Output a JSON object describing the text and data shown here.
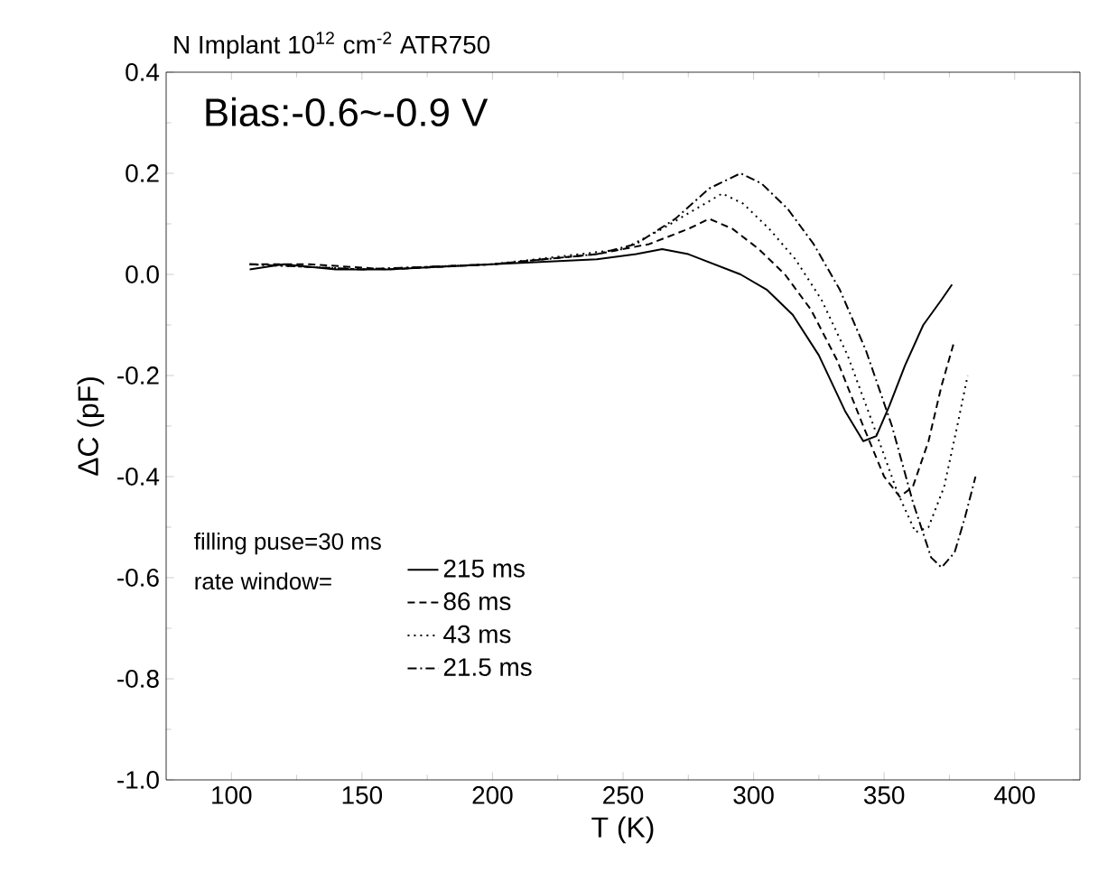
{
  "chart_data": {
    "type": "line",
    "title": "N Implant 10$^{12}$ cm$^{-2}$ ATR750",
    "xlabel": "T (K)",
    "ylabel": "ΔC (pF)",
    "annotations": [
      "Bias:-0.6~-0.9 V",
      "filling puse=30 ms"
    ],
    "legend_title": "rate window=",
    "legend": "bottom left",
    "xlim": [
      75,
      425
    ],
    "ylim": [
      -1.0,
      0.4
    ],
    "xticks": [
      100,
      150,
      200,
      250,
      300,
      350,
      400
    ],
    "yticks": [
      {
        "value": -1.0,
        "label": "-1.0"
      },
      {
        "value": -0.8,
        "label": "-0.8"
      },
      {
        "value": -0.6,
        "label": "-0.6"
      },
      {
        "value": -0.4,
        "label": "-0.4"
      },
      {
        "value": -0.2,
        "label": "-0.2"
      },
      {
        "value": 0.0,
        "label": "0.0"
      },
      {
        "value": 0.2,
        "label": "0.2"
      },
      {
        "value": 0.4,
        "label": "0.4"
      }
    ],
    "grid": false,
    "marker": "none",
    "series": [
      {
        "name": "215 ms",
        "color": "#000000",
        "line_style": "solid",
        "x": [
          107,
          120,
          140,
          160,
          180,
          200,
          220,
          240,
          255,
          265,
          275,
          285,
          295,
          305,
          315,
          325,
          335,
          342,
          347,
          352,
          358,
          365,
          372,
          376
        ],
        "values": [
          0.01,
          0.02,
          0.01,
          0.01,
          0.015,
          0.02,
          0.025,
          0.03,
          0.04,
          0.05,
          0.04,
          0.02,
          0.0,
          -0.03,
          -0.08,
          -0.16,
          -0.27,
          -0.33,
          -0.32,
          -0.26,
          -0.18,
          -0.1,
          -0.05,
          -0.02
        ]
      },
      {
        "name": "86 ms",
        "color": "#000000",
        "line_style": "dashed",
        "x": [
          107,
          130,
          160,
          200,
          240,
          260,
          275,
          283,
          292,
          302,
          312,
          322,
          332,
          342,
          350,
          356,
          361,
          367,
          372,
          377
        ],
        "values": [
          0.02,
          0.02,
          0.01,
          0.02,
          0.04,
          0.06,
          0.09,
          0.11,
          0.09,
          0.05,
          0.0,
          -0.07,
          -0.17,
          -0.3,
          -0.4,
          -0.44,
          -0.42,
          -0.33,
          -0.22,
          -0.13
        ]
      },
      {
        "name": "43 ms",
        "color": "#000000",
        "line_style": "dotted",
        "x": [
          107,
          150,
          200,
          250,
          265,
          278,
          288,
          296,
          306,
          316,
          326,
          336,
          346,
          355,
          362,
          367,
          373,
          378,
          382
        ],
        "values": [
          0.02,
          0.01,
          0.02,
          0.05,
          0.09,
          0.13,
          0.16,
          0.14,
          0.09,
          0.03,
          -0.05,
          -0.16,
          -0.3,
          -0.43,
          -0.51,
          -0.5,
          -0.42,
          -0.3,
          -0.2
        ]
      },
      {
        "name": "21.5 ms",
        "color": "#000000",
        "line_style": "dashdot",
        "x": [
          107,
          150,
          200,
          240,
          255,
          270,
          283,
          295,
          303,
          313,
          323,
          333,
          343,
          353,
          361,
          368,
          372,
          377,
          381,
          385
        ],
        "values": [
          0.02,
          0.01,
          0.02,
          0.04,
          0.06,
          0.11,
          0.17,
          0.2,
          0.18,
          0.13,
          0.06,
          -0.03,
          -0.15,
          -0.3,
          -0.45,
          -0.56,
          -0.58,
          -0.55,
          -0.48,
          -0.4
        ]
      }
    ]
  }
}
